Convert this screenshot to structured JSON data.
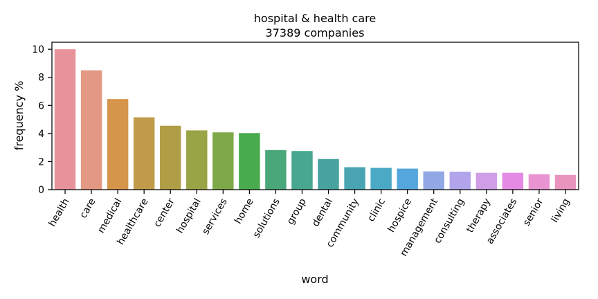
{
  "chart_data": {
    "type": "bar",
    "title": "hospital & health care",
    "subtitle": "37389 companies",
    "xlabel": "word",
    "ylabel": "frequency %",
    "ylim": [
      0,
      10.5
    ],
    "yticks": [
      0,
      2,
      4,
      6,
      8,
      10
    ],
    "grid": false,
    "categories": [
      "health",
      "care",
      "medical",
      "healthcare",
      "center",
      "hospital",
      "services",
      "home",
      "solutions",
      "group",
      "dental",
      "community",
      "clinic",
      "hospice",
      "management",
      "consulting",
      "therapy",
      "associates",
      "senior",
      "living"
    ],
    "values": [
      10.0,
      8.5,
      6.45,
      5.15,
      4.55,
      4.22,
      4.08,
      4.03,
      2.82,
      2.75,
      2.18,
      1.6,
      1.55,
      1.5,
      1.3,
      1.28,
      1.2,
      1.2,
      1.1,
      1.05
    ],
    "colors": [
      "#e8939c",
      "#e39883",
      "#d5954a",
      "#c09c4a",
      "#b09e46",
      "#99a446",
      "#7ea948",
      "#48ab4e",
      "#4aa77a",
      "#47a790",
      "#48a39f",
      "#48a5b1",
      "#4aa9c4",
      "#55a6dc",
      "#92a8e6",
      "#b2a4ea",
      "#d09ee6",
      "#e48ae4",
      "#e994d2",
      "#e994bd"
    ]
  }
}
